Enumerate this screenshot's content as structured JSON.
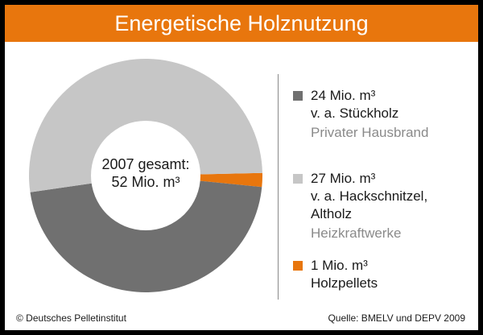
{
  "title": "Energetische Holznutzung",
  "center_label": {
    "line1": "2007 gesamt:",
    "line2": "52 Mio. m³"
  },
  "legend": [
    {
      "lines": [
        "24 Mio. m³",
        "v. a. Stückholz"
      ],
      "muted": "Privater Hausbrand",
      "color": "#707070"
    },
    {
      "lines": [
        "27 Mio. m³",
        "v. a. Hackschnitzel,",
        "Altholz"
      ],
      "muted": "Heizkraftwerke",
      "color": "#c6c6c6"
    },
    {
      "lines": [
        "1 Mio. m³",
        "Holzpellets"
      ],
      "muted": "",
      "color": "#e8760d"
    }
  ],
  "chart_data": {
    "type": "pie",
    "title": "Energetische Holznutzung",
    "total": 52,
    "categories": [
      "Stückholz (Privater Hausbrand)",
      "Hackschnitzel, Altholz (Heizkraftwerke)",
      "Holzpellets"
    ],
    "values": [
      24,
      27,
      1
    ],
    "colors": [
      "#707070",
      "#c6c6c6",
      "#e8760d"
    ]
  },
  "footer": {
    "copyright": "© Deutsches Pelletinstitut",
    "source": "Quelle: BMELV und DEPV 2009"
  }
}
